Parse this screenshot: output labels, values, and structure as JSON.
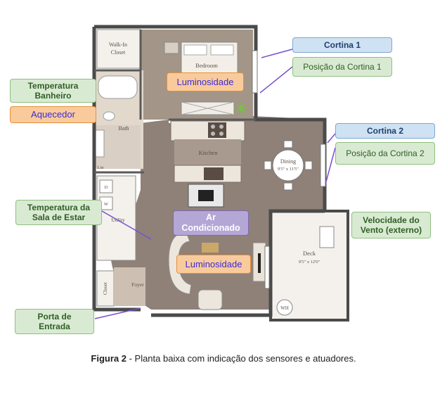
{
  "rooms": {
    "walkin_line1": "Walk-In",
    "walkin_line2": "Closet",
    "bedroom": "Bedroom",
    "bath": "Bath",
    "kitchen": "Kitchen",
    "dining": "Dining",
    "dining_dim": "9'5\" x 11'5\"",
    "utility": "Utility",
    "closet": "Closet",
    "foyer": "Foyer",
    "deck": "Deck",
    "deck_dim": "9'5\" x 12'0\"",
    "wh": "WH",
    "lin": "Lin",
    "d": "D",
    "w": "W"
  },
  "labels": {
    "cortina1": "Cortina 1",
    "posicao_cortina1": "Posição da Cortina 1",
    "cortina2": "Cortina 2",
    "posicao_cortina2": "Posição da Cortina 2",
    "temp_banheiro_1": "Temperatura",
    "temp_banheiro_2": "Banheiro",
    "aquecedor": "Aquecedor",
    "luminosidade_quarto": "Luminosidade",
    "temp_sala_1": "Temperatura da",
    "temp_sala_2": "Sala de Estar",
    "ar_1": "Ar",
    "ar_2": "Condicionado",
    "luminosidade_sala": "Luminosidade",
    "vento_1": "Velocidade do",
    "vento_2": "Vento (externo)",
    "porta_1": "Porta de",
    "porta_2": "Entrada"
  },
  "caption": {
    "figure": "Figura 2",
    "text": " - Planta baixa com indicação dos sensores e atuadores."
  },
  "colors": {
    "floor_wood": "#8f8178",
    "wall": "#4a4a4a",
    "arrow": "#7a4fd0",
    "light_green": "#7bc043"
  }
}
